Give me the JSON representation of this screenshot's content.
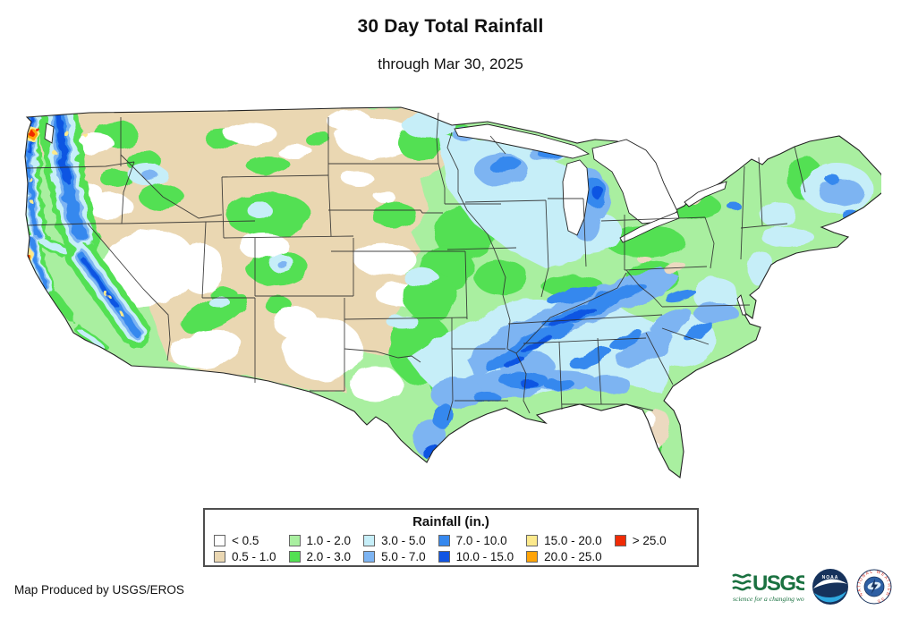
{
  "header": {
    "title": "30 Day Total Rainfall",
    "subtitle": "through Mar 30, 2025"
  },
  "legend": {
    "title": "Rainfall (in.)",
    "items": [
      {
        "label": "< 0.5",
        "color": "#ffffff"
      },
      {
        "label": "0.5 - 1.0",
        "color": "#ead7b2"
      },
      {
        "label": "1.0 - 2.0",
        "color": "#a9efa0"
      },
      {
        "label": "2.0 - 3.0",
        "color": "#52e052"
      },
      {
        "label": "3.0 - 5.0",
        "color": "#c6eef8"
      },
      {
        "label": "5.0 - 7.0",
        "color": "#7db4f2"
      },
      {
        "label": "7.0 - 10.0",
        "color": "#3688ee"
      },
      {
        "label": "10.0 - 15.0",
        "color": "#1155e2"
      },
      {
        "label": "15.0 - 20.0",
        "color": "#fce98c"
      },
      {
        "label": "20.0 - 25.0",
        "color": "#ffa408"
      },
      {
        "label": "> 25.0",
        "color": "#f02b05"
      }
    ]
  },
  "footer": {
    "credit": "Map Produced by USGS/EROS"
  },
  "logos": {
    "usgs": {
      "name": "USGS",
      "tagline": "science for a changing world"
    },
    "noaa": {
      "name": "NOAA"
    },
    "nws": {
      "name": "NATIONAL WEATHER SERVICE"
    }
  }
}
